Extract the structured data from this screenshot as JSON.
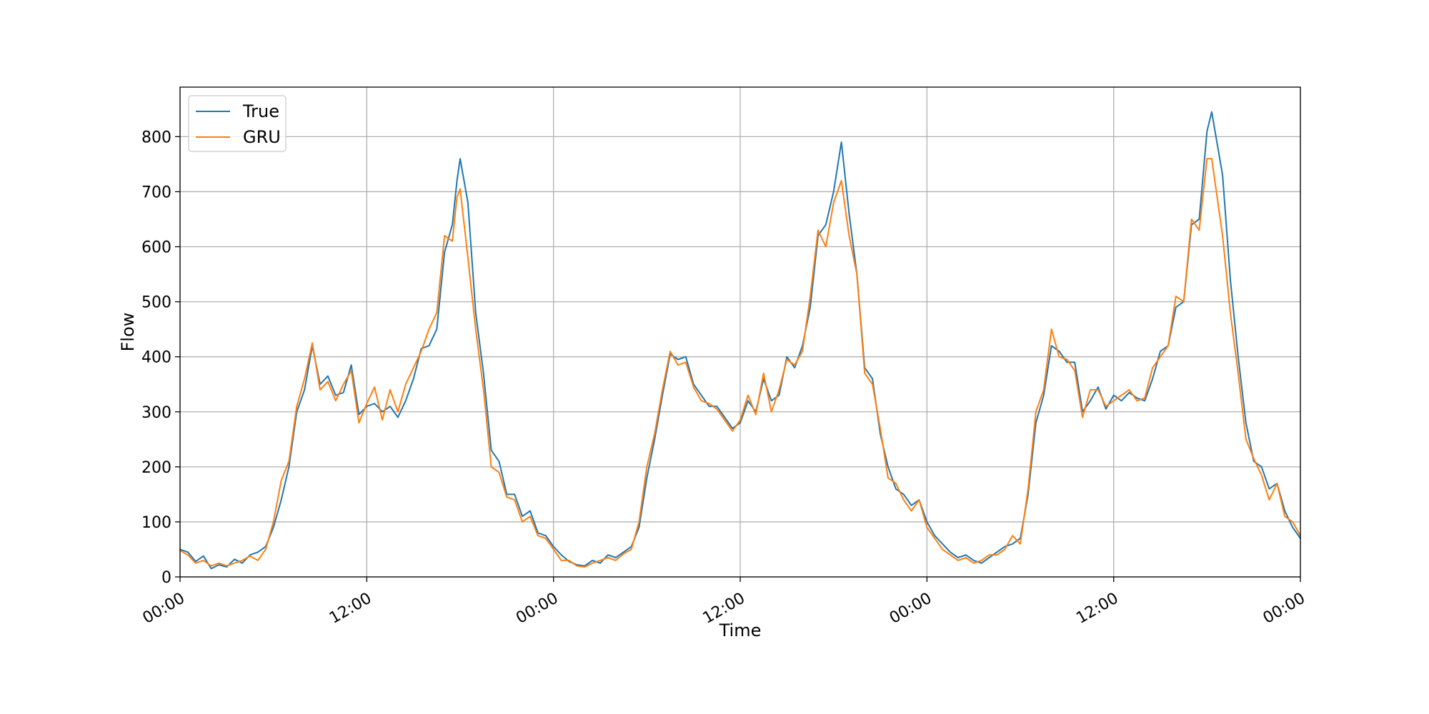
{
  "chart_data": {
    "type": "line",
    "title": "",
    "xlabel": "Time",
    "ylabel": "Flow",
    "x_unit": "hours",
    "xlim": [
      0,
      72
    ],
    "ylim": [
      0,
      890
    ],
    "grid": true,
    "legend_position": "upper-left",
    "xticks": [
      {
        "value": 0,
        "label": "00:00"
      },
      {
        "value": 12,
        "label": "12:00"
      },
      {
        "value": 24,
        "label": "00:00"
      },
      {
        "value": 36,
        "label": "12:00"
      },
      {
        "value": 48,
        "label": "00:00"
      },
      {
        "value": 60,
        "label": "12:00"
      },
      {
        "value": 72,
        "label": "00:00"
      }
    ],
    "yticks": [
      0,
      100,
      200,
      300,
      400,
      500,
      600,
      700,
      800
    ],
    "series": [
      {
        "name": "True",
        "color": "#1f77b4",
        "points": [
          [
            0,
            50
          ],
          [
            0.5,
            45
          ],
          [
            1,
            28
          ],
          [
            1.5,
            38
          ],
          [
            2,
            15
          ],
          [
            2.5,
            22
          ],
          [
            3,
            18
          ],
          [
            3.5,
            32
          ],
          [
            4,
            25
          ],
          [
            4.5,
            40
          ],
          [
            5,
            45
          ],
          [
            5.5,
            55
          ],
          [
            6,
            90
          ],
          [
            6.5,
            140
          ],
          [
            7,
            200
          ],
          [
            7.5,
            300
          ],
          [
            8,
            340
          ],
          [
            8.5,
            420
          ],
          [
            9,
            350
          ],
          [
            9.5,
            365
          ],
          [
            10,
            330
          ],
          [
            10.5,
            335
          ],
          [
            11,
            385
          ],
          [
            11.5,
            295
          ],
          [
            12,
            310
          ],
          [
            12.5,
            315
          ],
          [
            13,
            300
          ],
          [
            13.5,
            310
          ],
          [
            14,
            290
          ],
          [
            14.5,
            320
          ],
          [
            15,
            360
          ],
          [
            15.5,
            415
          ],
          [
            16,
            420
          ],
          [
            16.5,
            450
          ],
          [
            17,
            590
          ],
          [
            17.5,
            640
          ],
          [
            17.8,
            720
          ],
          [
            18,
            760
          ],
          [
            18.5,
            680
          ],
          [
            19,
            480
          ],
          [
            19.5,
            370
          ],
          [
            20,
            230
          ],
          [
            20.5,
            210
          ],
          [
            21,
            150
          ],
          [
            21.5,
            150
          ],
          [
            22,
            110
          ],
          [
            22.5,
            120
          ],
          [
            23,
            80
          ],
          [
            23.5,
            75
          ],
          [
            24,
            55
          ],
          [
            24.5,
            40
          ],
          [
            25,
            28
          ],
          [
            25.5,
            22
          ],
          [
            26,
            20
          ],
          [
            26.5,
            30
          ],
          [
            27,
            25
          ],
          [
            27.5,
            40
          ],
          [
            28,
            35
          ],
          [
            28.5,
            45
          ],
          [
            29,
            55
          ],
          [
            29.5,
            90
          ],
          [
            30,
            180
          ],
          [
            30.5,
            250
          ],
          [
            31,
            330
          ],
          [
            31.5,
            405
          ],
          [
            32,
            395
          ],
          [
            32.5,
            400
          ],
          [
            33,
            350
          ],
          [
            33.5,
            330
          ],
          [
            34,
            310
          ],
          [
            34.5,
            310
          ],
          [
            35,
            290
          ],
          [
            35.5,
            270
          ],
          [
            36,
            280
          ],
          [
            36.5,
            320
          ],
          [
            37,
            300
          ],
          [
            37.5,
            360
          ],
          [
            38,
            320
          ],
          [
            38.5,
            330
          ],
          [
            39,
            400
          ],
          [
            39.5,
            380
          ],
          [
            40,
            420
          ],
          [
            40.5,
            490
          ],
          [
            41,
            620
          ],
          [
            41.5,
            640
          ],
          [
            42,
            700
          ],
          [
            42.5,
            790
          ],
          [
            43,
            660
          ],
          [
            43.5,
            550
          ],
          [
            44,
            380
          ],
          [
            44.5,
            360
          ],
          [
            45,
            260
          ],
          [
            45.5,
            200
          ],
          [
            46,
            160
          ],
          [
            46.5,
            150
          ],
          [
            47,
            130
          ],
          [
            47.5,
            140
          ],
          [
            48,
            100
          ],
          [
            48.5,
            75
          ],
          [
            49,
            60
          ],
          [
            49.5,
            45
          ],
          [
            50,
            35
          ],
          [
            50.5,
            40
          ],
          [
            51,
            30
          ],
          [
            51.5,
            25
          ],
          [
            52,
            35
          ],
          [
            52.5,
            45
          ],
          [
            53,
            55
          ],
          [
            53.5,
            60
          ],
          [
            54,
            70
          ],
          [
            54.5,
            150
          ],
          [
            55,
            280
          ],
          [
            55.5,
            330
          ],
          [
            56,
            420
          ],
          [
            56.5,
            410
          ],
          [
            57,
            390
          ],
          [
            57.5,
            390
          ],
          [
            58,
            300
          ],
          [
            58.5,
            320
          ],
          [
            59,
            345
          ],
          [
            59.5,
            305
          ],
          [
            60,
            330
          ],
          [
            60.5,
            320
          ],
          [
            61,
            335
          ],
          [
            61.5,
            325
          ],
          [
            62,
            320
          ],
          [
            62.5,
            360
          ],
          [
            63,
            410
          ],
          [
            63.5,
            420
          ],
          [
            64,
            490
          ],
          [
            64.5,
            500
          ],
          [
            65,
            640
          ],
          [
            65.5,
            650
          ],
          [
            66,
            810
          ],
          [
            66.3,
            845
          ],
          [
            67,
            730
          ],
          [
            67.5,
            540
          ],
          [
            68,
            400
          ],
          [
            68.5,
            280
          ],
          [
            69,
            210
          ],
          [
            69.5,
            200
          ],
          [
            70,
            160
          ],
          [
            70.5,
            170
          ],
          [
            71,
            120
          ],
          [
            71.5,
            90
          ],
          [
            72,
            70
          ]
        ]
      },
      {
        "name": "GRU",
        "color": "#ff7f0e",
        "points": [
          [
            0,
            48
          ],
          [
            0.5,
            40
          ],
          [
            1,
            25
          ],
          [
            1.5,
            30
          ],
          [
            2,
            20
          ],
          [
            2.5,
            25
          ],
          [
            3,
            20
          ],
          [
            3.5,
            25
          ],
          [
            4,
            30
          ],
          [
            4.5,
            38
          ],
          [
            5,
            30
          ],
          [
            5.5,
            50
          ],
          [
            6,
            100
          ],
          [
            6.5,
            175
          ],
          [
            7,
            210
          ],
          [
            7.5,
            310
          ],
          [
            8,
            360
          ],
          [
            8.5,
            425
          ],
          [
            9,
            340
          ],
          [
            9.5,
            355
          ],
          [
            10,
            320
          ],
          [
            10.5,
            350
          ],
          [
            11,
            375
          ],
          [
            11.5,
            280
          ],
          [
            12,
            315
          ],
          [
            12.5,
            345
          ],
          [
            13,
            285
          ],
          [
            13.5,
            340
          ],
          [
            14,
            300
          ],
          [
            14.5,
            350
          ],
          [
            15,
            380
          ],
          [
            15.5,
            410
          ],
          [
            16,
            450
          ],
          [
            16.5,
            480
          ],
          [
            17,
            620
          ],
          [
            17.5,
            610
          ],
          [
            17.8,
            690
          ],
          [
            18,
            705
          ],
          [
            18.5,
            580
          ],
          [
            19,
            450
          ],
          [
            19.5,
            340
          ],
          [
            20,
            200
          ],
          [
            20.5,
            190
          ],
          [
            21,
            145
          ],
          [
            21.5,
            140
          ],
          [
            22,
            100
          ],
          [
            22.5,
            110
          ],
          [
            23,
            75
          ],
          [
            23.5,
            70
          ],
          [
            24,
            50
          ],
          [
            24.5,
            30
          ],
          [
            25,
            30
          ],
          [
            25.5,
            20
          ],
          [
            26,
            18
          ],
          [
            26.5,
            25
          ],
          [
            27,
            30
          ],
          [
            27.5,
            35
          ],
          [
            28,
            30
          ],
          [
            28.5,
            42
          ],
          [
            29,
            50
          ],
          [
            29.5,
            100
          ],
          [
            30,
            200
          ],
          [
            30.5,
            260
          ],
          [
            31,
            340
          ],
          [
            31.5,
            410
          ],
          [
            32,
            385
          ],
          [
            32.5,
            390
          ],
          [
            33,
            345
          ],
          [
            33.5,
            320
          ],
          [
            34,
            315
          ],
          [
            34.5,
            305
          ],
          [
            35,
            285
          ],
          [
            35.5,
            265
          ],
          [
            36,
            285
          ],
          [
            36.5,
            330
          ],
          [
            37,
            295
          ],
          [
            37.5,
            370
          ],
          [
            38,
            300
          ],
          [
            38.5,
            340
          ],
          [
            39,
            395
          ],
          [
            39.5,
            385
          ],
          [
            40,
            410
          ],
          [
            40.5,
            510
          ],
          [
            41,
            630
          ],
          [
            41.5,
            600
          ],
          [
            42,
            680
          ],
          [
            42.5,
            720
          ],
          [
            43,
            620
          ],
          [
            43.5,
            550
          ],
          [
            44,
            370
          ],
          [
            44.5,
            350
          ],
          [
            45,
            270
          ],
          [
            45.5,
            180
          ],
          [
            46,
            170
          ],
          [
            46.5,
            140
          ],
          [
            47,
            120
          ],
          [
            47.5,
            140
          ],
          [
            48,
            90
          ],
          [
            48.5,
            70
          ],
          [
            49,
            50
          ],
          [
            49.5,
            40
          ],
          [
            50,
            30
          ],
          [
            50.5,
            35
          ],
          [
            51,
            25
          ],
          [
            51.5,
            30
          ],
          [
            52,
            40
          ],
          [
            52.5,
            40
          ],
          [
            53,
            50
          ],
          [
            53.5,
            75
          ],
          [
            54,
            60
          ],
          [
            54.5,
            160
          ],
          [
            55,
            300
          ],
          [
            55.5,
            340
          ],
          [
            56,
            450
          ],
          [
            56.5,
            400
          ],
          [
            57,
            395
          ],
          [
            57.5,
            375
          ],
          [
            58,
            290
          ],
          [
            58.5,
            340
          ],
          [
            59,
            340
          ],
          [
            59.5,
            310
          ],
          [
            60,
            320
          ],
          [
            60.5,
            330
          ],
          [
            61,
            340
          ],
          [
            61.5,
            320
          ],
          [
            62,
            325
          ],
          [
            62.5,
            380
          ],
          [
            63,
            400
          ],
          [
            63.5,
            420
          ],
          [
            64,
            510
          ],
          [
            64.5,
            500
          ],
          [
            65,
            650
          ],
          [
            65.5,
            630
          ],
          [
            66,
            760
          ],
          [
            66.3,
            760
          ],
          [
            67,
            620
          ],
          [
            67.5,
            480
          ],
          [
            68,
            370
          ],
          [
            68.5,
            250
          ],
          [
            69,
            215
          ],
          [
            69.5,
            185
          ],
          [
            70,
            140
          ],
          [
            70.5,
            170
          ],
          [
            71,
            110
          ],
          [
            71.5,
            100
          ],
          [
            72,
            75
          ]
        ]
      }
    ]
  }
}
